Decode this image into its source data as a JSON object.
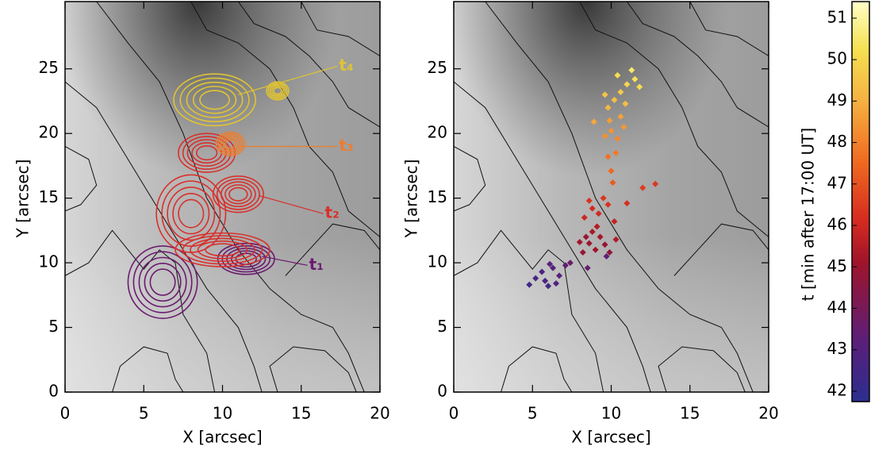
{
  "chart_data": [
    {
      "type": "contour",
      "xlabel": "X [arcsec]",
      "ylabel": "Y [arcsec]",
      "xlim": [
        0,
        20
      ],
      "ylim": [
        0,
        30.2
      ],
      "xticks": [
        0,
        5,
        10,
        15,
        20
      ],
      "yticks": [
        0,
        5,
        10,
        15,
        20,
        25
      ],
      "annotations": [
        {
          "text": "t₁",
          "color": "#6b1b6f"
        },
        {
          "text": "t₂",
          "color": "#d8302c"
        },
        {
          "text": "t₃",
          "color": "#f07c2a"
        },
        {
          "text": "t₄",
          "color": "#e0c432"
        }
      ]
    },
    {
      "type": "scatter",
      "xlabel": "X [arcsec]",
      "ylabel": "Y [arcsec]",
      "xlim": [
        0,
        20
      ],
      "ylim": [
        0,
        30.2
      ],
      "xticks": [
        0,
        5,
        10,
        15,
        20
      ],
      "yticks": [
        0,
        5,
        10,
        15,
        20,
        25
      ],
      "x": [
        5.2,
        5.6,
        6.0,
        6.3,
        6.7,
        7.1,
        5.8,
        6.5,
        4.8,
        7.4,
        6.1,
        8.5,
        9.7,
        8.2,
        8.6,
        9.0,
        9.3,
        8.8,
        9.6,
        8.4,
        9.9,
        10.3,
        9.1,
        8.0,
        8.3,
        8.8,
        9.2,
        9.5,
        8.6,
        10.2,
        11.0,
        12.0,
        12.8,
        9.8,
        10.1,
        10.0,
        9.8,
        10.3,
        9.6,
        10.0,
        10.4,
        10.8,
        9.9,
        10.6,
        8.9,
        9.8,
        10.2,
        10.6,
        11.0,
        11.5,
        10.4,
        11.8,
        9.6,
        10.9,
        11.3
      ],
      "y": [
        8.8,
        9.3,
        8.2,
        9.6,
        9.0,
        9.8,
        8.6,
        8.4,
        8.3,
        10.0,
        9.9,
        9.6,
        10.5,
        10.8,
        11.5,
        11.0,
        12.0,
        12.4,
        11.4,
        12.0,
        10.8,
        11.8,
        12.8,
        11.6,
        13.5,
        14.2,
        13.8,
        15.0,
        14.8,
        13.2,
        14.6,
        15.8,
        16.1,
        14.5,
        16.2,
        17.1,
        18.2,
        18.5,
        19.8,
        20.2,
        19.6,
        20.5,
        21.0,
        21.3,
        20.9,
        22.0,
        22.6,
        23.2,
        23.8,
        24.2,
        24.5,
        23.6,
        23.0,
        22.3,
        24.9
      ],
      "values": [
        42.6,
        42.8,
        42.5,
        43.0,
        43.2,
        43.4,
        42.7,
        42.9,
        42.4,
        43.6,
        43.1,
        43.5,
        43.3,
        44.8,
        45.0,
        45.1,
        45.2,
        45.3,
        44.9,
        45.0,
        44.7,
        45.4,
        45.5,
        45.2,
        45.9,
        46.1,
        46.0,
        46.4,
        46.3,
        45.8,
        46.2,
        46.5,
        46.4,
        46.3,
        47.2,
        47.5,
        47.7,
        47.9,
        48.3,
        48.4,
        48.2,
        48.5,
        48.6,
        48.7,
        48.8,
        49.2,
        49.4,
        49.7,
        50.0,
        50.3,
        50.2,
        50.1,
        49.5,
        49.3,
        50.5
      ]
    },
    {
      "type": "colorbar",
      "ylabel": "t [min after 17:00 UT]",
      "ylim": [
        41.75,
        51.4
      ],
      "yticks": [
        42,
        43,
        44,
        45,
        46,
        47,
        48,
        49,
        50,
        51
      ]
    }
  ]
}
